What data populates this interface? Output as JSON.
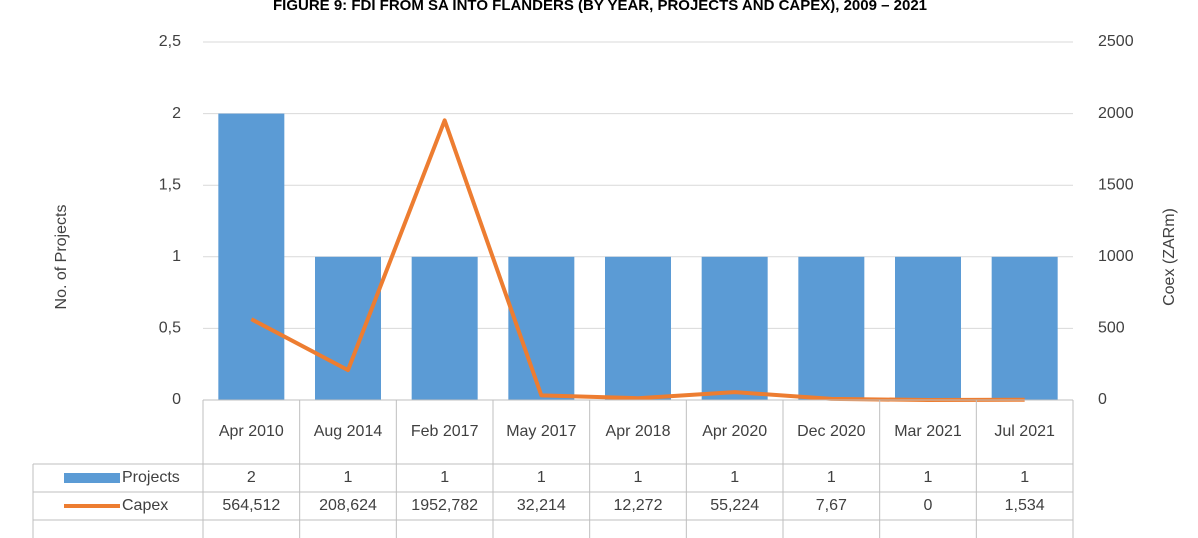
{
  "chart_data": {
    "type": "bar",
    "title": "FIGURE 9: FDI FROM SA INTO FLANDERS (BY YEAR, PROJECTS AND CAPEX), 2009 – 2021",
    "categories": [
      "Apr 2010",
      "Aug 2014",
      "Feb 2017",
      "May 2017",
      "Apr 2018",
      "Apr 2020",
      "Dec 2020",
      "Mar 2021",
      "Jul 2021"
    ],
    "series": [
      {
        "name": "Projects",
        "type": "bar",
        "color": "#5b9bd5",
        "values": [
          2,
          1,
          1,
          1,
          1,
          1,
          1,
          1,
          1
        ]
      },
      {
        "name": "Capex",
        "type": "line",
        "axis": "y2",
        "color": "#ed7d31",
        "values": [
          564.512,
          208.624,
          1952.782,
          32.214,
          12.272,
          55.224,
          7.67,
          0,
          1.534
        ],
        "value_labels": [
          "564,512",
          "208,624",
          "1952,782",
          "32,214",
          "12,272",
          "55,224",
          "7,67",
          "0",
          "1,534"
        ]
      }
    ],
    "ylabel": "No. of Projects",
    "y2label": "Coex (ZARm)",
    "ylim": [
      0,
      2.5
    ],
    "yticks": [
      0,
      {
        "value": 0.5,
        "label": "0,5"
      },
      1,
      {
        "value": 1.5,
        "label": "1,5"
      },
      2,
      {
        "value": 2.5,
        "label": "2,5"
      }
    ],
    "y2lim": [
      0,
      2500
    ],
    "y2ticks": [
      0,
      500,
      1000,
      1500,
      2000,
      2500
    ],
    "grid": true,
    "data_table": true
  }
}
